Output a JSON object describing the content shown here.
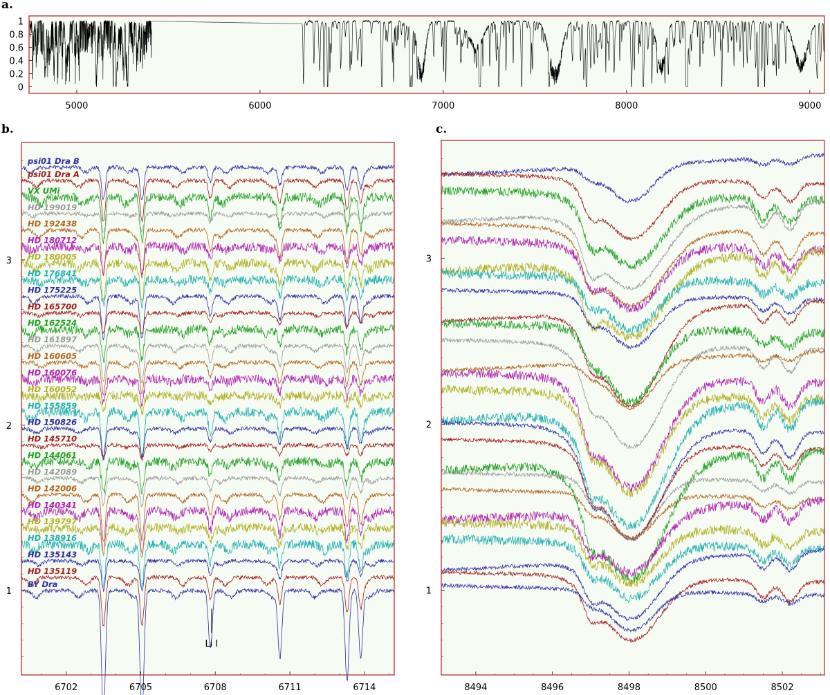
{
  "chart_data": [
    {
      "panel": "a.",
      "type": "line",
      "xlim": [
        4740,
        9080
      ],
      "ylim": [
        -0.1,
        1.08
      ],
      "x_ticks": [
        5000,
        6000,
        7000,
        8000,
        9000
      ],
      "y_ticks": [
        "1",
        "0.8",
        "0.6",
        "0.4",
        "0.2",
        "0"
      ],
      "y_tick_values": [
        1,
        0.8,
        0.6,
        0.4,
        0.2,
        0
      ],
      "segments": [
        [
          4740,
          5410
        ],
        [
          6230,
          9080
        ]
      ],
      "gap_line": {
        "x": [
          5410,
          6230
        ],
        "y": [
          1.0,
          0.96
        ]
      },
      "absorption_bands": [
        {
          "center": 6880,
          "width": 35,
          "depth": 0.02
        },
        {
          "center": 7610,
          "width": 55,
          "depth": 0.0
        },
        {
          "center": 7180,
          "width": 60,
          "depth": 0.5
        },
        {
          "center": 8190,
          "width": 40,
          "depth": 0.18
        },
        {
          "center": 8950,
          "width": 60,
          "depth": 0.2
        }
      ],
      "colors": {
        "line": "#000000",
        "background": "#f6fbf4",
        "frame": "#b02020"
      },
      "grid": false
    },
    {
      "panel": "b.",
      "type": "line",
      "xlim": [
        6700.2,
        6715.2
      ],
      "x_ticks": [
        "6702",
        "6705",
        "6708",
        "6711",
        "6714"
      ],
      "x_tick_values": [
        6702,
        6705,
        6708,
        6711,
        6714
      ],
      "y_ticks": [
        "1",
        "2",
        "3"
      ],
      "y_tick_values": [
        1,
        2,
        3
      ],
      "ylim": [
        0.49,
        3.71
      ],
      "line_centers": [
        6703.5,
        6705.05,
        6707.8,
        6710.6,
        6713.3,
        6713.85
      ],
      "annotation": {
        "text": "Li I",
        "x": 6707.85
      },
      "colors": {
        "background": "#f6fbf4",
        "frame": "#b02020"
      },
      "grid": false
    },
    {
      "panel": "c.",
      "type": "line",
      "xlim": [
        8493.1,
        8503.1
      ],
      "x_ticks": [
        "8494",
        "8496",
        "8498",
        "8500",
        "8502"
      ],
      "x_tick_values": [
        8494,
        8496,
        8498,
        8500,
        8502
      ],
      "y_ticks": [
        "1",
        "2",
        "3"
      ],
      "y_tick_values": [
        1,
        2,
        3
      ],
      "ylim": [
        0.49,
        3.71
      ],
      "line_centers": [
        8498.05,
        8497.0,
        8501.5,
        8502.2
      ],
      "colors": {
        "background": "#f6fbf4",
        "frame": "#b02020"
      },
      "grid": false
    }
  ],
  "stars": [
    {
      "name": "psi01 Dra B",
      "color": "#2c2ca0",
      "offset": 3.56
    },
    {
      "name": "psi01 Dra A",
      "color": "#a01c1c",
      "offset": 3.48
    },
    {
      "name": "VX UMi",
      "color": "#20a020",
      "offset": 3.38
    },
    {
      "name": "HD 199019",
      "color": "#999999",
      "offset": 3.28
    },
    {
      "name": "HD 192438",
      "color": "#b0641c",
      "offset": 3.18
    },
    {
      "name": "HD 180712",
      "color": "#b020b0",
      "offset": 3.08
    },
    {
      "name": "HD 180005",
      "color": "#b0b020",
      "offset": 2.98
    },
    {
      "name": "HD 176841",
      "color": "#20b0b0",
      "offset": 2.88
    },
    {
      "name": "HD 175225",
      "color": "#2c2ca0",
      "offset": 2.78
    },
    {
      "name": "HD 165700",
      "color": "#a01c1c",
      "offset": 2.68
    },
    {
      "name": "HD 162524",
      "color": "#20a020",
      "offset": 2.58
    },
    {
      "name": "HD 161897",
      "color": "#999999",
      "offset": 2.48
    },
    {
      "name": "HD 160605",
      "color": "#b0641c",
      "offset": 2.38
    },
    {
      "name": "HD 160076",
      "color": "#b020b0",
      "offset": 2.28
    },
    {
      "name": "HD 160052",
      "color": "#b0b020",
      "offset": 2.18
    },
    {
      "name": "HD 155859",
      "color": "#20b0b0",
      "offset": 2.08
    },
    {
      "name": "HD 150826",
      "color": "#2c2ca0",
      "offset": 1.98
    },
    {
      "name": "HD 145710",
      "color": "#a01c1c",
      "offset": 1.88
    },
    {
      "name": "HD 144061",
      "color": "#20a020",
      "offset": 1.78
    },
    {
      "name": "HD 142089",
      "color": "#999999",
      "offset": 1.68
    },
    {
      "name": "HD 142006",
      "color": "#b0641c",
      "offset": 1.58
    },
    {
      "name": "HD 140341",
      "color": "#b020b0",
      "offset": 1.48
    },
    {
      "name": "HD 139797",
      "color": "#b0b020",
      "offset": 1.38
    },
    {
      "name": "HD 138916",
      "color": "#20b0b0",
      "offset": 1.28
    },
    {
      "name": "HD 135143",
      "color": "#2c2ca0",
      "offset": 1.18
    },
    {
      "name": "HD 135119",
      "color": "#a01c1c",
      "offset": 1.08
    },
    {
      "name": "BY Dra",
      "color": "#2c2ca0",
      "offset": 1.0
    }
  ],
  "labels": {
    "panel_a": "a.",
    "panel_b": "b.",
    "panel_c": "c."
  }
}
